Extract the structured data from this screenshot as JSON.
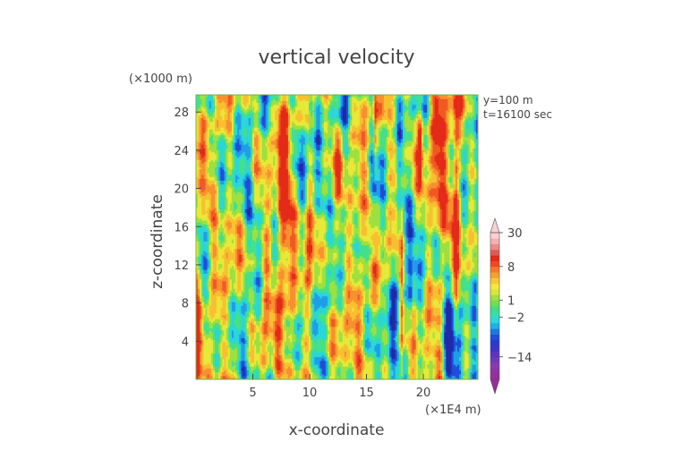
{
  "chart_data": {
    "type": "heatmap",
    "title": "vertical velocity",
    "xlabel": "x-coordinate",
    "ylabel": "z-coordinate",
    "x_unit": "(×1E4 m)",
    "y_unit": "(×1000 m)",
    "annotations": [
      "y=100 m",
      "t=16100 sec"
    ],
    "xlim": [
      0,
      24.8
    ],
    "ylim": [
      0,
      29.8
    ],
    "x_ticks": [
      5,
      10,
      15,
      20
    ],
    "y_ticks": [
      4,
      8,
      12,
      16,
      20,
      24,
      28
    ],
    "colorbar": {
      "tick_labels": [
        "30",
        "8",
        "1",
        "−2",
        "−14"
      ],
      "tick_values": [
        30,
        8,
        1,
        -2,
        -14
      ],
      "levels": [
        -30,
        -26,
        -22,
        -18,
        -14,
        -12,
        -10,
        -8,
        -6,
        -4,
        -3,
        -2,
        -1,
        0,
        1,
        2,
        3,
        4,
        5,
        6,
        8,
        10,
        14,
        18,
        22,
        26,
        30
      ],
      "colors": [
        "#9b2c9e",
        "#8e34a6",
        "#8a3ab0",
        "#7238b8",
        "#5a36c0",
        "#3f34c8",
        "#2a3ad0",
        "#1f4fd8",
        "#1f78e0",
        "#1fb0e8",
        "#2ad6e0",
        "#34e0b0",
        "#3ee080",
        "#6ee050",
        "#a0e040",
        "#d8e838",
        "#f6e838",
        "#f8c830",
        "#f8a030",
        "#f87828",
        "#f04820",
        "#e82818",
        "#e05a5a",
        "#ec8a8a",
        "#f5b0b0",
        "#fad0d0"
      ]
    }
  }
}
